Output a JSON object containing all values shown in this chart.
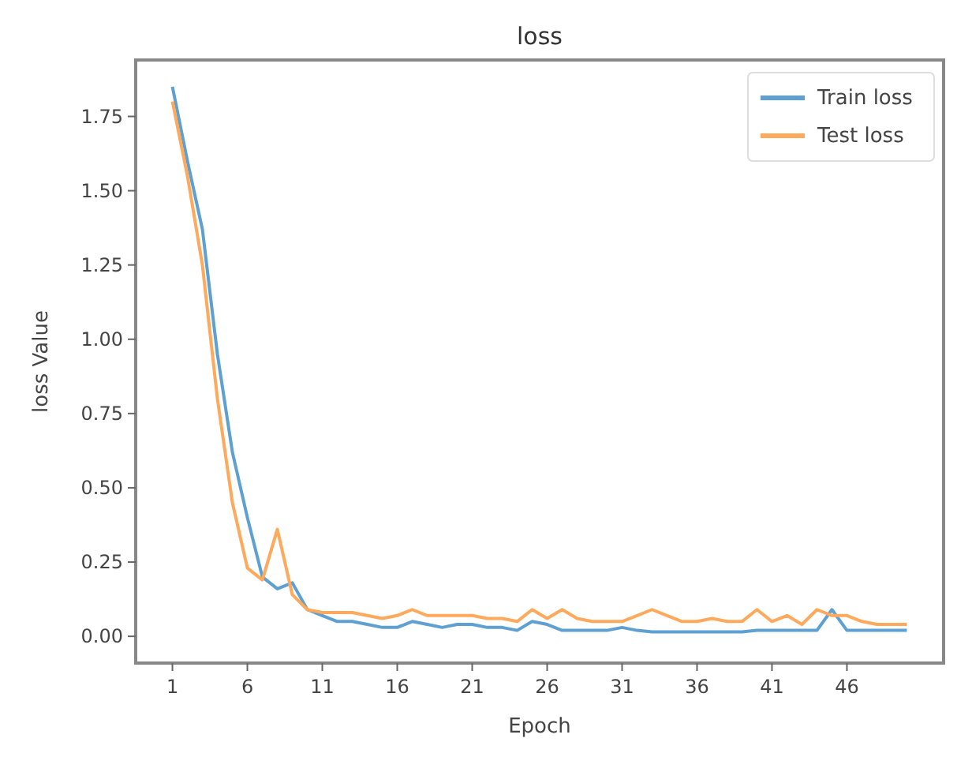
{
  "chart_data": {
    "type": "line",
    "title": "loss",
    "xlabel": "Epoch",
    "ylabel": "loss Value",
    "x": [
      1,
      2,
      3,
      4,
      5,
      6,
      7,
      8,
      9,
      10,
      11,
      12,
      13,
      14,
      15,
      16,
      17,
      18,
      19,
      20,
      21,
      22,
      23,
      24,
      25,
      26,
      27,
      28,
      29,
      30,
      31,
      32,
      33,
      34,
      35,
      36,
      37,
      38,
      39,
      40,
      41,
      42,
      43,
      44,
      45,
      46,
      47,
      48,
      49,
      50
    ],
    "series": [
      {
        "name": "Train loss",
        "color": "#5fa0d2",
        "values": [
          1.85,
          1.6,
          1.37,
          0.95,
          0.62,
          0.4,
          0.2,
          0.16,
          0.18,
          0.09,
          0.07,
          0.05,
          0.05,
          0.04,
          0.03,
          0.03,
          0.05,
          0.04,
          0.03,
          0.04,
          0.04,
          0.03,
          0.03,
          0.02,
          0.05,
          0.04,
          0.02,
          0.02,
          0.02,
          0.02,
          0.03,
          0.02,
          0.015,
          0.015,
          0.015,
          0.015,
          0.015,
          0.015,
          0.015,
          0.02,
          0.02,
          0.02,
          0.02,
          0.02,
          0.09,
          0.02,
          0.02,
          0.02,
          0.02,
          0.02
        ]
      },
      {
        "name": "Test loss",
        "color": "#ffa95c",
        "values": [
          1.8,
          1.55,
          1.25,
          0.8,
          0.45,
          0.23,
          0.19,
          0.36,
          0.14,
          0.09,
          0.08,
          0.08,
          0.08,
          0.07,
          0.06,
          0.07,
          0.09,
          0.07,
          0.07,
          0.07,
          0.07,
          0.06,
          0.06,
          0.05,
          0.09,
          0.06,
          0.09,
          0.06,
          0.05,
          0.05,
          0.05,
          0.07,
          0.09,
          0.07,
          0.05,
          0.05,
          0.06,
          0.05,
          0.05,
          0.09,
          0.05,
          0.07,
          0.04,
          0.09,
          0.07,
          0.07,
          0.05,
          0.04,
          0.04,
          0.04
        ]
      }
    ],
    "xlim": [
      -1.45,
      52.45
    ],
    "xticks": [
      1,
      6,
      11,
      16,
      21,
      26,
      31,
      36,
      41,
      46
    ],
    "ylim": [
      -0.09,
      1.94
    ],
    "yticks": [
      {
        "value": 0,
        "label": "0.00"
      },
      {
        "value": 0.25,
        "label": "0.25"
      },
      {
        "value": 0.5,
        "label": "0.50"
      },
      {
        "value": 0.75,
        "label": "0.75"
      },
      {
        "value": 1,
        "label": "1.00"
      },
      {
        "value": 1.25,
        "label": "1.25"
      },
      {
        "value": 1.5,
        "label": "1.50"
      },
      {
        "value": 1.75,
        "label": "1.75"
      }
    ],
    "legend": "top right",
    "grid": false,
    "line_style": "solid",
    "marker": "none"
  }
}
